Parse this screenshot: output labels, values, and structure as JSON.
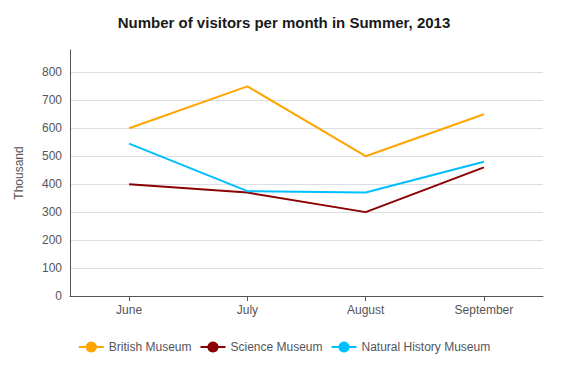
{
  "chart_data": {
    "type": "line",
    "title": "Number of visitors per month in Summer, 2013",
    "ylabel": "Thousand",
    "categories": [
      "June",
      "July",
      "August",
      "September"
    ],
    "series": [
      {
        "name": "British Museum",
        "color": "#FFA500",
        "values": [
          600,
          750,
          500,
          650
        ]
      },
      {
        "name": "Science Museum",
        "color": "#8B0000",
        "values": [
          400,
          370,
          300,
          460
        ]
      },
      {
        "name": "Natural History Museum",
        "color": "#00BFFF",
        "values": [
          545,
          375,
          370,
          480
        ]
      }
    ],
    "ylim": [
      0,
      880
    ],
    "yticks": [
      0,
      100,
      200,
      300,
      400,
      500,
      600,
      700,
      800
    ],
    "grid": true,
    "legend": "bottom"
  }
}
